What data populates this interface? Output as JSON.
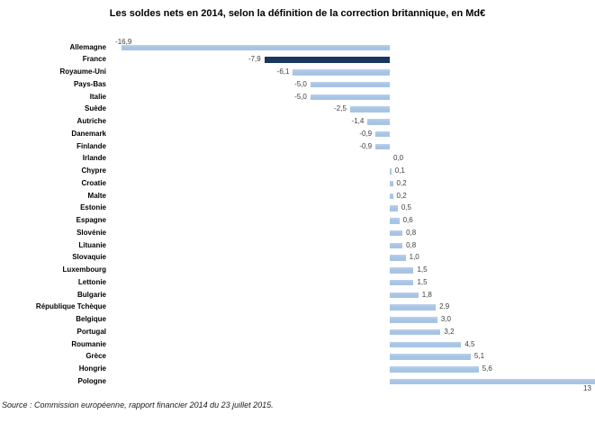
{
  "title": "Les soldes nets en 2014, selon la définition de la correction britannique, en Md€",
  "source": "Source : Commission européenne, rapport financier 2014 du 23 juillet 2015.",
  "chart_data": {
    "type": "bar",
    "orientation": "horizontal",
    "unit": "Md€",
    "title": "Les soldes nets en 2014, selon la définition de la correction britannique, en Md€",
    "categories": [
      "Allemagne",
      "France",
      "Royaume-Uni",
      "Pays-Bas",
      "Italie",
      "Suède",
      "Autriche",
      "Danemark",
      "Finlande",
      "Irlande",
      "Chypre",
      "Croatie",
      "Malte",
      "Estonie",
      "Espagne",
      "Slovénie",
      "Lituanie",
      "Slovaquie",
      "Luxembourg",
      "Lettonie",
      "Bulgarie",
      "République Tchèque",
      "Belgique",
      "Portugal",
      "Roumanie",
      "Grèce",
      "Hongrie",
      "Pologne"
    ],
    "values": [
      -16.9,
      -7.9,
      -6.1,
      -5.0,
      -5.0,
      -2.5,
      -1.4,
      -0.9,
      -0.9,
      0.0,
      0.1,
      0.2,
      0.2,
      0.5,
      0.6,
      0.8,
      0.8,
      1.0,
      1.5,
      1.5,
      1.8,
      2.9,
      3.0,
      3.2,
      4.5,
      5.1,
      5.6,
      13
    ],
    "value_labels": [
      "-16,9",
      "-7,9",
      "-6,1",
      "-5,0",
      "-5,0",
      "-2,5",
      "-1,4",
      "-0,9",
      "-0,9",
      "0,0",
      "0,1",
      "0,2",
      "0,2",
      "0,5",
      "0,6",
      "0,8",
      "0,8",
      "1,0",
      "1,5",
      "1,5",
      "1,8",
      "2,9",
      "3,0",
      "3,2",
      "4,5",
      "5,1",
      "5,6",
      "13"
    ],
    "highlighted_category": "France",
    "colors": {
      "bar": "#a7c4e4",
      "bar_highlight": "#17375d"
    },
    "x_range": [
      -17,
      13
    ],
    "gridlines": false,
    "legend": false,
    "zero_baseline": true,
    "notes": "Pologne bar and its data label are truncated at the right edge of the image"
  }
}
